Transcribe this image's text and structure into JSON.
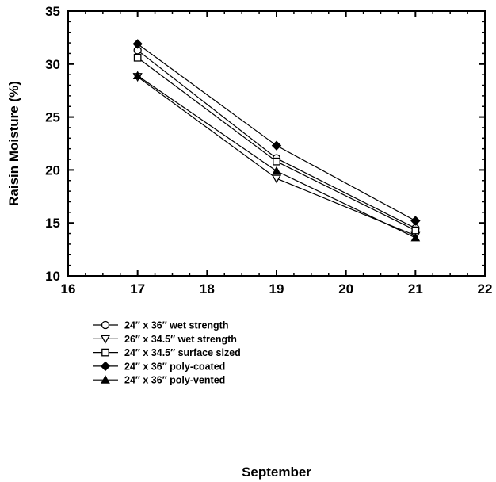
{
  "chart_data": {
    "type": "line",
    "title": "",
    "xlabel": "September",
    "ylabel": "Raisin Moisture (%)",
    "xlim": [
      16,
      22
    ],
    "ylim": [
      10,
      35
    ],
    "x_ticks": [
      16,
      17,
      18,
      19,
      20,
      21,
      22
    ],
    "y_ticks": [
      10,
      15,
      20,
      25,
      30,
      35
    ],
    "x": [
      17,
      19,
      21
    ],
    "grid": false,
    "legend_position": "bottom-left",
    "series": [
      {
        "name": "24″ x 36″ wet strength",
        "marker": "circle-open",
        "values": [
          31.3,
          21.1,
          14.5
        ]
      },
      {
        "name": "26″ x 34.5″ wet strength",
        "marker": "triangle-down-open",
        "values": [
          28.8,
          19.2,
          13.8
        ]
      },
      {
        "name": "24″ x 34.5″ surface sized",
        "marker": "square-open",
        "values": [
          30.6,
          20.8,
          14.3
        ]
      },
      {
        "name": "24″ x 36″ poly-coated",
        "marker": "diamond-filled",
        "values": [
          31.9,
          22.3,
          15.2
        ]
      },
      {
        "name": "24″ x 36″ poly-vented",
        "marker": "triangle-up-filled",
        "values": [
          28.9,
          19.9,
          13.6
        ]
      }
    ]
  }
}
